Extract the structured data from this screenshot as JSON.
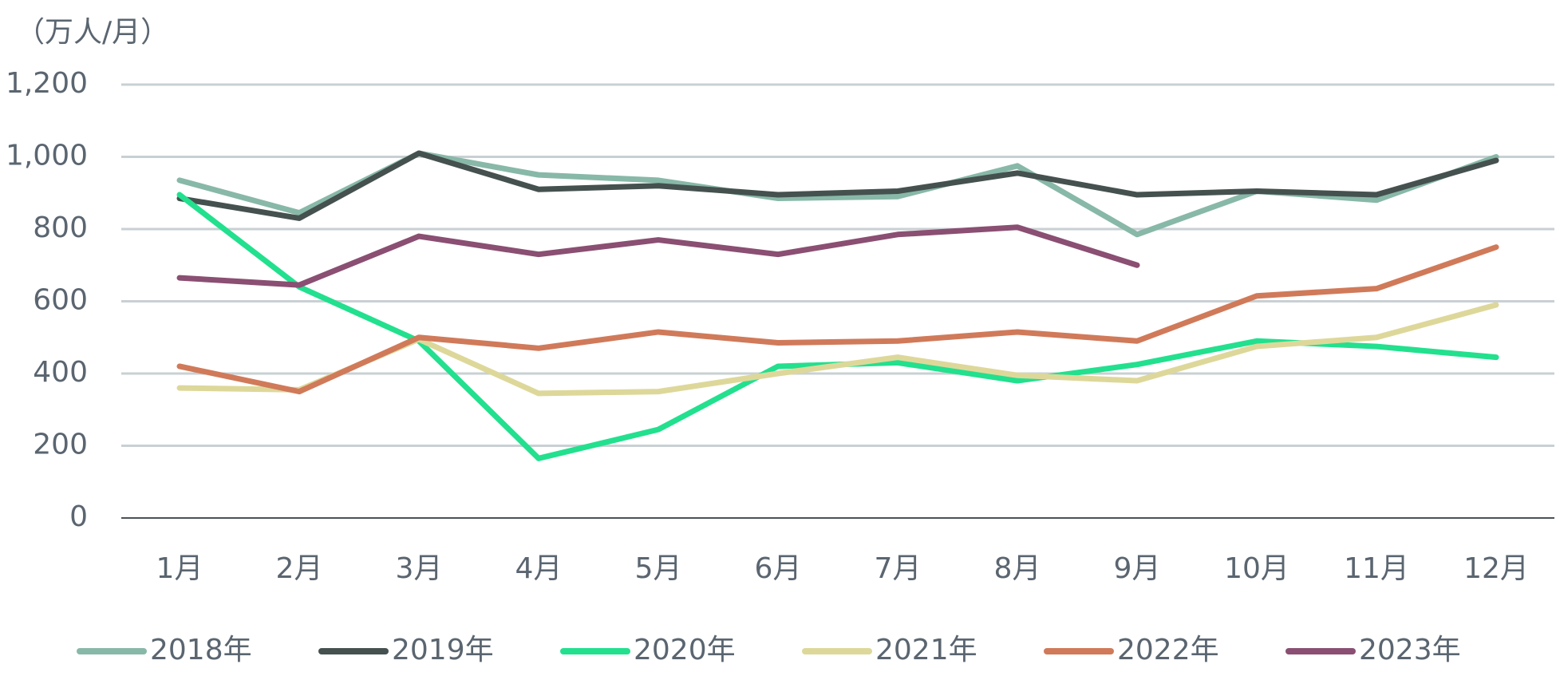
{
  "chart_data": {
    "type": "line",
    "y_label": "（万人/月）",
    "categories": [
      "1月",
      "2月",
      "3月",
      "4月",
      "5月",
      "6月",
      "7月",
      "8月",
      "9月",
      "10月",
      "11月",
      "12月"
    ],
    "series": [
      {
        "name": "2018年",
        "color": "#88b8a8",
        "values": [
          935,
          845,
          1010,
          950,
          935,
          885,
          890,
          975,
          785,
          905,
          880,
          1000
        ]
      },
      {
        "name": "2019年",
        "color": "#45514f",
        "values": [
          885,
          830,
          1010,
          910,
          920,
          895,
          905,
          955,
          895,
          905,
          895,
          990
        ]
      },
      {
        "name": "2020年",
        "color": "#22e08e",
        "values": [
          895,
          640,
          490,
          165,
          245,
          420,
          430,
          380,
          425,
          490,
          475,
          445
        ]
      },
      {
        "name": "2021年",
        "color": "#ddd89a",
        "values": [
          360,
          355,
          495,
          345,
          350,
          400,
          445,
          395,
          380,
          475,
          500,
          590
        ]
      },
      {
        "name": "2022年",
        "color": "#d07a5a",
        "values": [
          420,
          350,
          500,
          470,
          515,
          485,
          490,
          515,
          490,
          615,
          635,
          750
        ]
      },
      {
        "name": "2023年",
        "color": "#8a4f72",
        "values": [
          665,
          645,
          780,
          730,
          770,
          730,
          785,
          805,
          700,
          null,
          null,
          null
        ]
      }
    ],
    "ylim": [
      0,
      1200
    ],
    "yticks": [
      0,
      200,
      400,
      600,
      800,
      {
        "value": 1000,
        "label": "1,000"
      },
      {
        "value": 1200,
        "label": "1,200"
      }
    ],
    "grid": true,
    "legend": "bottom"
  }
}
